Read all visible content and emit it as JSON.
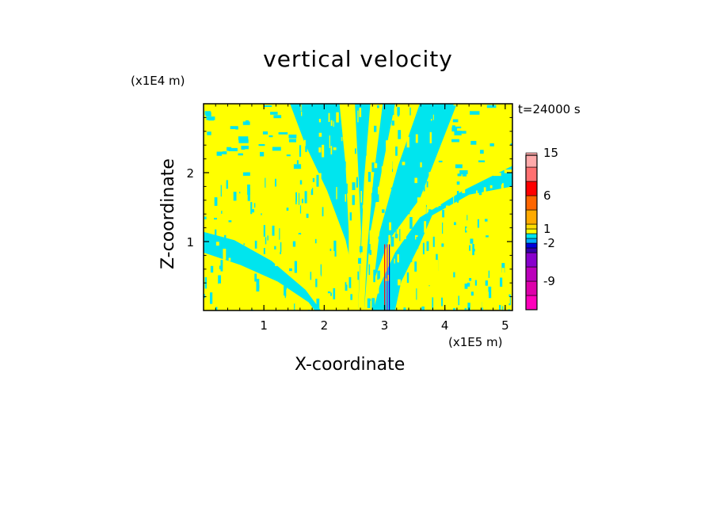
{
  "chart_data": {
    "type": "heatmap",
    "title": "vertical velocity",
    "xlabel": "X-coordinate",
    "ylabel": "Z-coordinate",
    "x_unit": "(x1E5 m)",
    "z_unit": "(x1E4 m)",
    "time_label": "t=24000 s",
    "x_ticks": [
      "1",
      "2",
      "3",
      "4",
      "5"
    ],
    "x_tick_values": [
      1,
      2,
      3,
      4,
      5
    ],
    "z_ticks": [
      "1",
      "2"
    ],
    "z_tick_values": [
      1,
      2
    ],
    "xlim": [
      0,
      5.12
    ],
    "zlim": [
      0,
      3.0
    ],
    "colorbar": {
      "labels": [
        "-9",
        "-2",
        "1",
        "6",
        "15"
      ],
      "bins": [
        {
          "color": "#ff00bb"
        },
        {
          "color": "#dd00aa"
        },
        {
          "color": "#bb00bb"
        },
        {
          "color": "#8800cc"
        },
        {
          "color": "#3300aa"
        },
        {
          "color": "#0000dd"
        },
        {
          "color": "#00aaff"
        },
        {
          "color": "#00e5ee"
        },
        {
          "color": "#ffff00"
        },
        {
          "color": "#ffdd00"
        },
        {
          "color": "#ffaa00"
        },
        {
          "color": "#ff6600"
        },
        {
          "color": "#ff0000"
        },
        {
          "color": "#ff7070"
        },
        {
          "color": "#ffaaaa"
        },
        {
          "color": "#ffdddd"
        }
      ]
    },
    "field_colors": {
      "positive": "#ffff00",
      "negative": "#00e5ee"
    }
  }
}
